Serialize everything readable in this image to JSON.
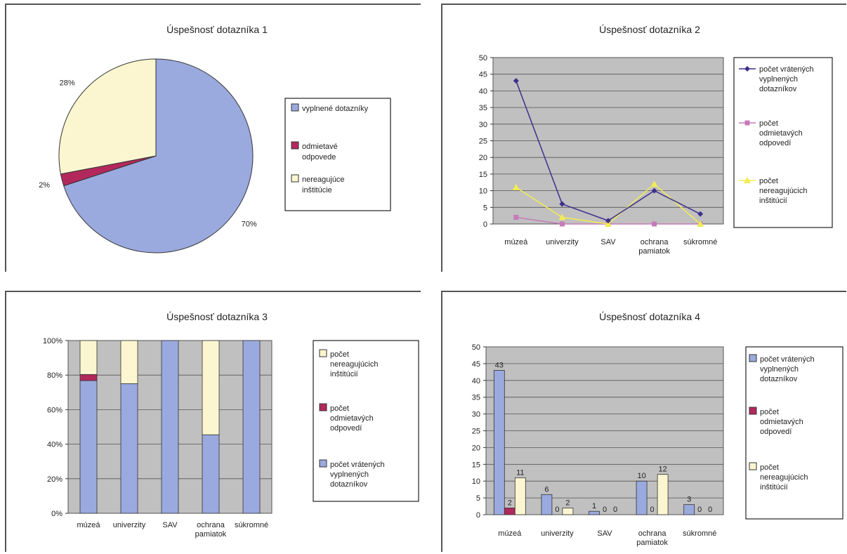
{
  "colors": {
    "blue": "#9aaade",
    "maroon": "#b3285c",
    "cream": "#fbf6cf",
    "navy": "#3f2f8c",
    "pink": "#c57bb8",
    "yellow": "#f3ec52",
    "plot_bg": "#c0c0c0"
  },
  "chart_data": [
    {
      "type": "pie",
      "title": "Úspešnosť dotazníka 1",
      "legend_position": "right",
      "slices": [
        {
          "name": "vyplnené dotazníky",
          "value": 70,
          "label": "70%",
          "legend": [
            "vyplnené dotazníky"
          ]
        },
        {
          "name": "odmietavé odpovede",
          "value": 2,
          "label": "2%",
          "legend": [
            "odmietavé",
            "odpovede"
          ]
        },
        {
          "name": "nereagujúce inštitúcie",
          "value": 28,
          "label": "28%",
          "legend": [
            "nereagujúce",
            "inštitúcie"
          ]
        }
      ]
    },
    {
      "type": "line",
      "title": "Úspešnosť dotazníka 2",
      "legend_position": "right",
      "grid": true,
      "ylim": [
        0,
        50
      ],
      "yticks": [
        "0",
        "5",
        "10",
        "15",
        "20",
        "25",
        "30",
        "35",
        "40",
        "45",
        "50"
      ],
      "categories": [
        [
          "múzeá"
        ],
        [
          "univerzity"
        ],
        [
          "SAV"
        ],
        [
          "ochrana",
          "pamiatok"
        ],
        [
          "súkromné"
        ]
      ],
      "series": [
        {
          "name": [
            "počet vrátených",
            "vyplnených",
            "dotazníkov"
          ],
          "values": [
            43,
            6,
            1,
            10,
            3
          ]
        },
        {
          "name": [
            "počet",
            "odmietavých",
            "odpovedí"
          ],
          "values": [
            2,
            0,
            0,
            0,
            0
          ]
        },
        {
          "name": [
            "počet",
            "nereagujúcich",
            "inštitúcií"
          ],
          "values": [
            11,
            2,
            0,
            12,
            0
          ]
        }
      ]
    },
    {
      "type": "bar",
      "stacked_percent": true,
      "title": "Úspešnosť dotazníka 3",
      "legend_position": "right",
      "grid": true,
      "ylim": [
        0,
        100
      ],
      "yticks": [
        "0%",
        "20%",
        "40%",
        "60%",
        "80%",
        "100%"
      ],
      "categories": [
        [
          "múzeá"
        ],
        [
          "univerzity"
        ],
        [
          "SAV"
        ],
        [
          "ochrana",
          "pamiatok"
        ],
        [
          "súkromné"
        ]
      ],
      "series": [
        {
          "name": [
            "počet vrátených",
            "vyplnených",
            "dotazníkov"
          ],
          "values": [
            43,
            6,
            1,
            10,
            3
          ]
        },
        {
          "name": [
            "počet",
            "odmietavých",
            "odpovedí"
          ],
          "values": [
            2,
            0,
            0,
            0,
            0
          ]
        },
        {
          "name": [
            "počet",
            "nereagujúcich",
            "inštitúcií"
          ],
          "values": [
            11,
            2,
            0,
            12,
            0
          ]
        }
      ],
      "legend_order": [
        2,
        1,
        0
      ]
    },
    {
      "type": "bar",
      "title": "Úspešnosť dotazníka 4",
      "legend_position": "right",
      "grid": true,
      "ylim": [
        0,
        50
      ],
      "yticks": [
        "0",
        "5",
        "10",
        "15",
        "20",
        "25",
        "30",
        "35",
        "40",
        "45",
        "50"
      ],
      "categories": [
        [
          "múzeá"
        ],
        [
          "univerzity"
        ],
        [
          "SAV"
        ],
        [
          "ochrana",
          "pamiatok"
        ],
        [
          "súkromné"
        ]
      ],
      "series": [
        {
          "name": [
            "počet vrátených",
            "vyplnených",
            "dotazníkov"
          ],
          "values": [
            43,
            6,
            1,
            10,
            3
          ]
        },
        {
          "name": [
            "počet",
            "odmietavých",
            "odpovedí"
          ],
          "values": [
            2,
            0,
            0,
            0,
            0
          ]
        },
        {
          "name": [
            "počet",
            "nereagujúcich",
            "inštitúcií"
          ],
          "values": [
            11,
            2,
            0,
            12,
            0
          ]
        }
      ]
    }
  ]
}
